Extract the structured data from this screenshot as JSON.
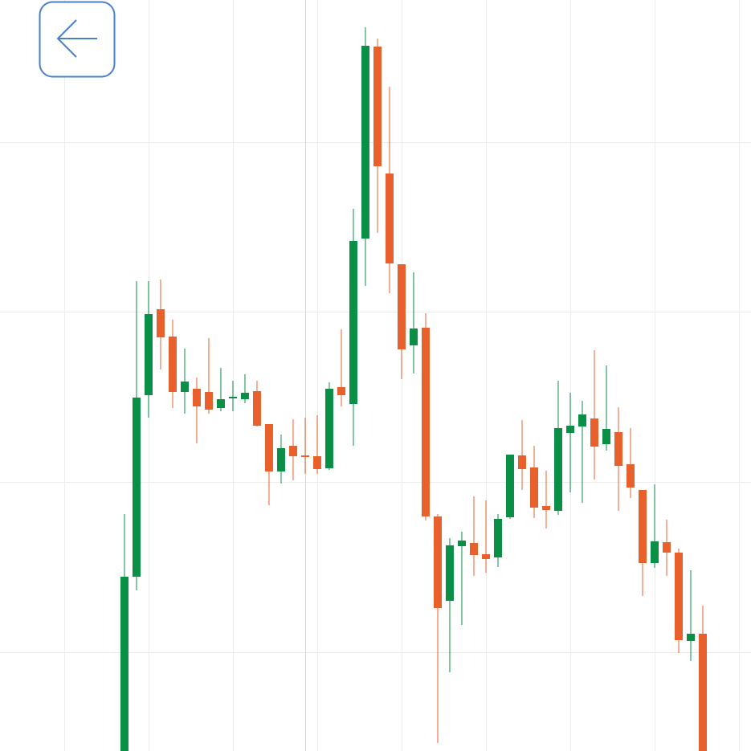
{
  "chart_data": {
    "type": "candlestick",
    "x": [
      0,
      1,
      2,
      3,
      4,
      5,
      6,
      7,
      8,
      9,
      10,
      11,
      12,
      13,
      14,
      15,
      16,
      17,
      18,
      19,
      20,
      21,
      22,
      23,
      24,
      25,
      26,
      27,
      28,
      29,
      30,
      31,
      32,
      33,
      34,
      35,
      36,
      37,
      38,
      39,
      40,
      41,
      42,
      43,
      44,
      45,
      46,
      47,
      48
    ],
    "open": [
      0,
      217,
      443,
      550,
      516,
      447,
      451,
      447,
      427,
      439,
      438,
      448,
      407,
      348,
      380,
      368,
      367,
      352,
      453,
      432,
      638,
      877,
      719,
      606,
      505,
      527,
      292,
      187,
      255,
      259,
      245,
      241,
      291,
      368,
      353,
      305,
      299,
      396,
      404,
      414,
      382,
      397,
      357,
      325,
      234,
      260,
      247,
      137,
      146
    ],
    "high": [
      295,
      585,
      585,
      587,
      537,
      501,
      465,
      514,
      477,
      461,
      469,
      461,
      407,
      394,
      413,
      415,
      418,
      459,
      525,
      675,
      901,
      887,
      827,
      606,
      596,
      545,
      295,
      265,
      273,
      317,
      312,
      295,
      369,
      412,
      380,
      349,
      461,
      446,
      436,
      499,
      480,
      428,
      402,
      325,
      332,
      288,
      252,
      225,
      181
    ],
    "low": [
      0,
      200,
      415,
      475,
      427,
      420,
      383,
      420,
      423,
      423,
      433,
      404,
      306,
      333,
      337,
      345,
      345,
      350,
      429,
      380,
      579,
      645,
      570,
      463,
      470,
      287,
      10,
      98,
      157,
      218,
      222,
      229,
      289,
      325,
      290,
      277,
      294,
      322,
      309,
      338,
      374,
      299,
      315,
      193,
      228,
      218,
      122,
      112,
      0
    ],
    "close": [
      217,
      440,
      544,
      515,
      447,
      460,
      429,
      425,
      438,
      441,
      446,
      405,
      348,
      377,
      367,
      366,
      351,
      451,
      443,
      635,
      878,
      728,
      607,
      500,
      526,
      292,
      178,
      256,
      262,
      244,
      239,
      289,
      369,
      351,
      303,
      300,
      402,
      405,
      419,
      379,
      401,
      355,
      328,
      234,
      261,
      247,
      138,
      146,
      0
    ],
    "up_color": "#0a8f47",
    "down_color": "#e8612c",
    "xlim": [
      -10.33,
      52
    ],
    "xticks": [
      -5,
      2,
      9,
      16,
      23,
      30,
      37,
      44,
      51
    ],
    "ylim": [
      0,
      935
    ],
    "yticks": [
      123,
      335,
      547,
      758
    ],
    "grid": true
  }
}
